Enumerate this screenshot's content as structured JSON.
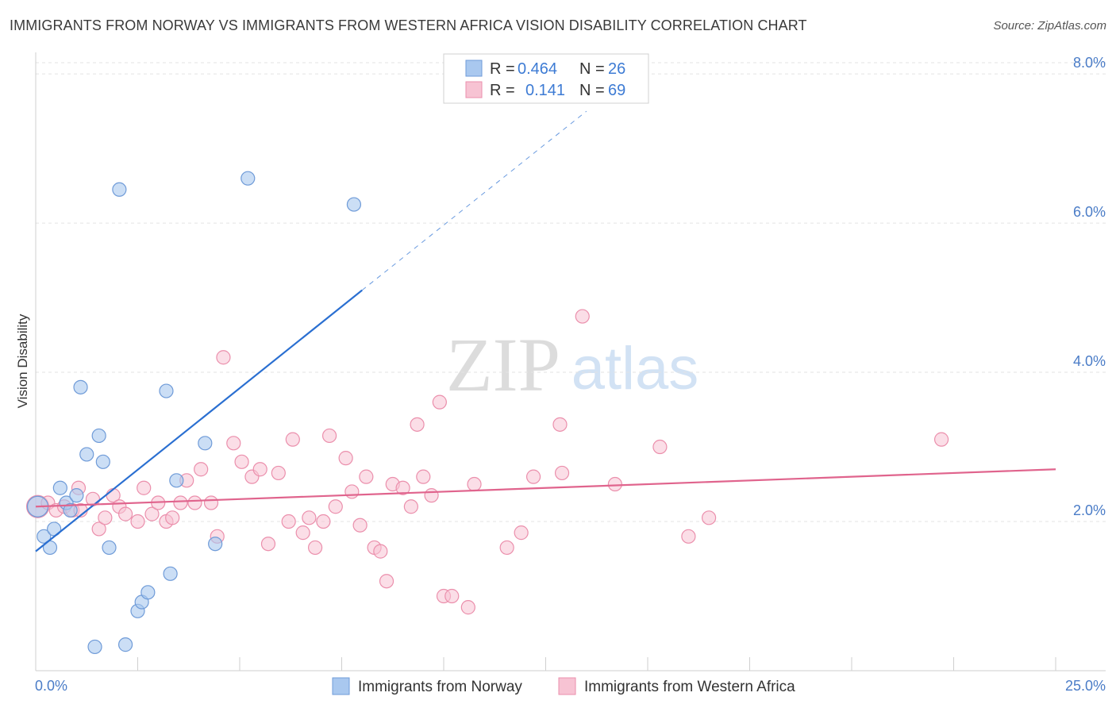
{
  "title": "IMMIGRANTS FROM NORWAY VS IMMIGRANTS FROM WESTERN AFRICA VISION DISABILITY CORRELATION CHART",
  "source": "Source: ZipAtlas.com",
  "watermark": {
    "part1": "ZIP",
    "part2": "atlas"
  },
  "colors": {
    "norway_fill": "#a9c8ef",
    "norway_stroke": "#6f9bd8",
    "norway_line": "#2a6fd1",
    "africa_fill": "#f7c3d3",
    "africa_stroke": "#eb8fac",
    "africa_line": "#e0648d",
    "tick": "#4a7cc7",
    "grid": "#e3e3e3"
  },
  "legend": {
    "norway": {
      "r_label": "R = ",
      "r_value": "0.464",
      "n_label": "N = ",
      "n_value": "26"
    },
    "africa": {
      "r_label": "R = ",
      "r_value": "0.141",
      "n_label": "N = ",
      "n_value": "69"
    }
  },
  "chart_data": {
    "type": "scatter",
    "title": "IMMIGRANTS FROM NORWAY VS IMMIGRANTS FROM WESTERN AFRICA VISION DISABILITY CORRELATION CHART",
    "xlabel": "",
    "ylabel": "Vision Disability",
    "xlim": [
      0,
      25
    ],
    "ylim": [
      0,
      8.15
    ],
    "x_ticks": [
      "0.0%",
      "25.0%"
    ],
    "y_ticks": [
      {
        "value": 2,
        "label": "2.0%"
      },
      {
        "value": 4,
        "label": "4.0%"
      },
      {
        "value": 6,
        "label": "6.0%"
      },
      {
        "value": 8,
        "label": "8.0%"
      }
    ],
    "grid": true,
    "legend_position": "top-center",
    "series": [
      {
        "name": "Immigrants from Norway",
        "color": "#a9c8ef",
        "trend": {
          "x0": 0,
          "y0": 1.6,
          "x1": 8,
          "y1": 5.1,
          "dash_to": [
            13.5,
            7.5
          ]
        },
        "points": [
          [
            0.05,
            2.2
          ],
          [
            0.2,
            1.8
          ],
          [
            0.35,
            1.65
          ],
          [
            0.45,
            1.9
          ],
          [
            0.6,
            2.45
          ],
          [
            0.75,
            2.25
          ],
          [
            0.85,
            2.15
          ],
          [
            1.0,
            2.35
          ],
          [
            1.1,
            3.8
          ],
          [
            1.25,
            2.9
          ],
          [
            1.55,
            3.15
          ],
          [
            1.65,
            2.8
          ],
          [
            1.8,
            1.65
          ],
          [
            2.05,
            6.45
          ],
          [
            2.2,
            0.35
          ],
          [
            2.5,
            0.8
          ],
          [
            2.6,
            0.92
          ],
          [
            2.75,
            1.05
          ],
          [
            3.2,
            3.75
          ],
          [
            3.3,
            1.3
          ],
          [
            3.45,
            2.55
          ],
          [
            4.15,
            3.05
          ],
          [
            4.4,
            1.7
          ],
          [
            5.2,
            6.6
          ],
          [
            7.8,
            6.25
          ],
          [
            1.45,
            0.32
          ]
        ]
      },
      {
        "name": "Immigrants from Western Africa",
        "color": "#f7c3d3",
        "trend": {
          "x0": 0,
          "y0": 2.2,
          "x1": 25,
          "y1": 2.7
        },
        "points": [
          [
            0.05,
            2.2
          ],
          [
            0.3,
            2.25
          ],
          [
            0.5,
            2.15
          ],
          [
            0.7,
            2.2
          ],
          [
            0.9,
            2.15
          ],
          [
            1.05,
            2.45
          ],
          [
            1.1,
            2.15
          ],
          [
            1.4,
            2.3
          ],
          [
            1.55,
            1.9
          ],
          [
            1.7,
            2.05
          ],
          [
            1.9,
            2.35
          ],
          [
            2.05,
            2.2
          ],
          [
            2.2,
            2.1
          ],
          [
            2.5,
            2.0
          ],
          [
            2.65,
            2.45
          ],
          [
            2.85,
            2.1
          ],
          [
            3.0,
            2.25
          ],
          [
            3.2,
            2.0
          ],
          [
            3.35,
            2.05
          ],
          [
            3.55,
            2.25
          ],
          [
            3.7,
            2.55
          ],
          [
            3.9,
            2.25
          ],
          [
            4.05,
            2.7
          ],
          [
            4.3,
            2.25
          ],
          [
            4.45,
            1.8
          ],
          [
            4.6,
            4.2
          ],
          [
            4.85,
            3.05
          ],
          [
            5.05,
            2.8
          ],
          [
            5.3,
            2.6
          ],
          [
            5.5,
            2.7
          ],
          [
            5.7,
            1.7
          ],
          [
            5.95,
            2.65
          ],
          [
            6.2,
            2.0
          ],
          [
            6.3,
            3.1
          ],
          [
            6.55,
            1.85
          ],
          [
            6.7,
            2.05
          ],
          [
            6.85,
            1.65
          ],
          [
            7.05,
            2.0
          ],
          [
            7.2,
            3.15
          ],
          [
            7.35,
            2.2
          ],
          [
            7.6,
            2.85
          ],
          [
            7.75,
            2.4
          ],
          [
            7.95,
            1.95
          ],
          [
            8.1,
            2.6
          ],
          [
            8.3,
            1.65
          ],
          [
            8.45,
            1.6
          ],
          [
            8.6,
            1.2
          ],
          [
            8.75,
            2.5
          ],
          [
            9.0,
            2.45
          ],
          [
            9.2,
            2.2
          ],
          [
            9.35,
            3.3
          ],
          [
            9.5,
            2.6
          ],
          [
            9.7,
            2.35
          ],
          [
            9.9,
            3.6
          ],
          [
            10.0,
            1.0
          ],
          [
            10.2,
            1.0
          ],
          [
            10.6,
            0.85
          ],
          [
            10.75,
            2.5
          ],
          [
            11.55,
            1.65
          ],
          [
            11.9,
            1.85
          ],
          [
            12.2,
            2.6
          ],
          [
            12.85,
            3.3
          ],
          [
            12.9,
            2.65
          ],
          [
            13.4,
            4.75
          ],
          [
            14.2,
            2.5
          ],
          [
            15.3,
            3.0
          ],
          [
            16.0,
            1.8
          ],
          [
            16.5,
            2.05
          ],
          [
            22.2,
            3.1
          ]
        ]
      }
    ]
  }
}
